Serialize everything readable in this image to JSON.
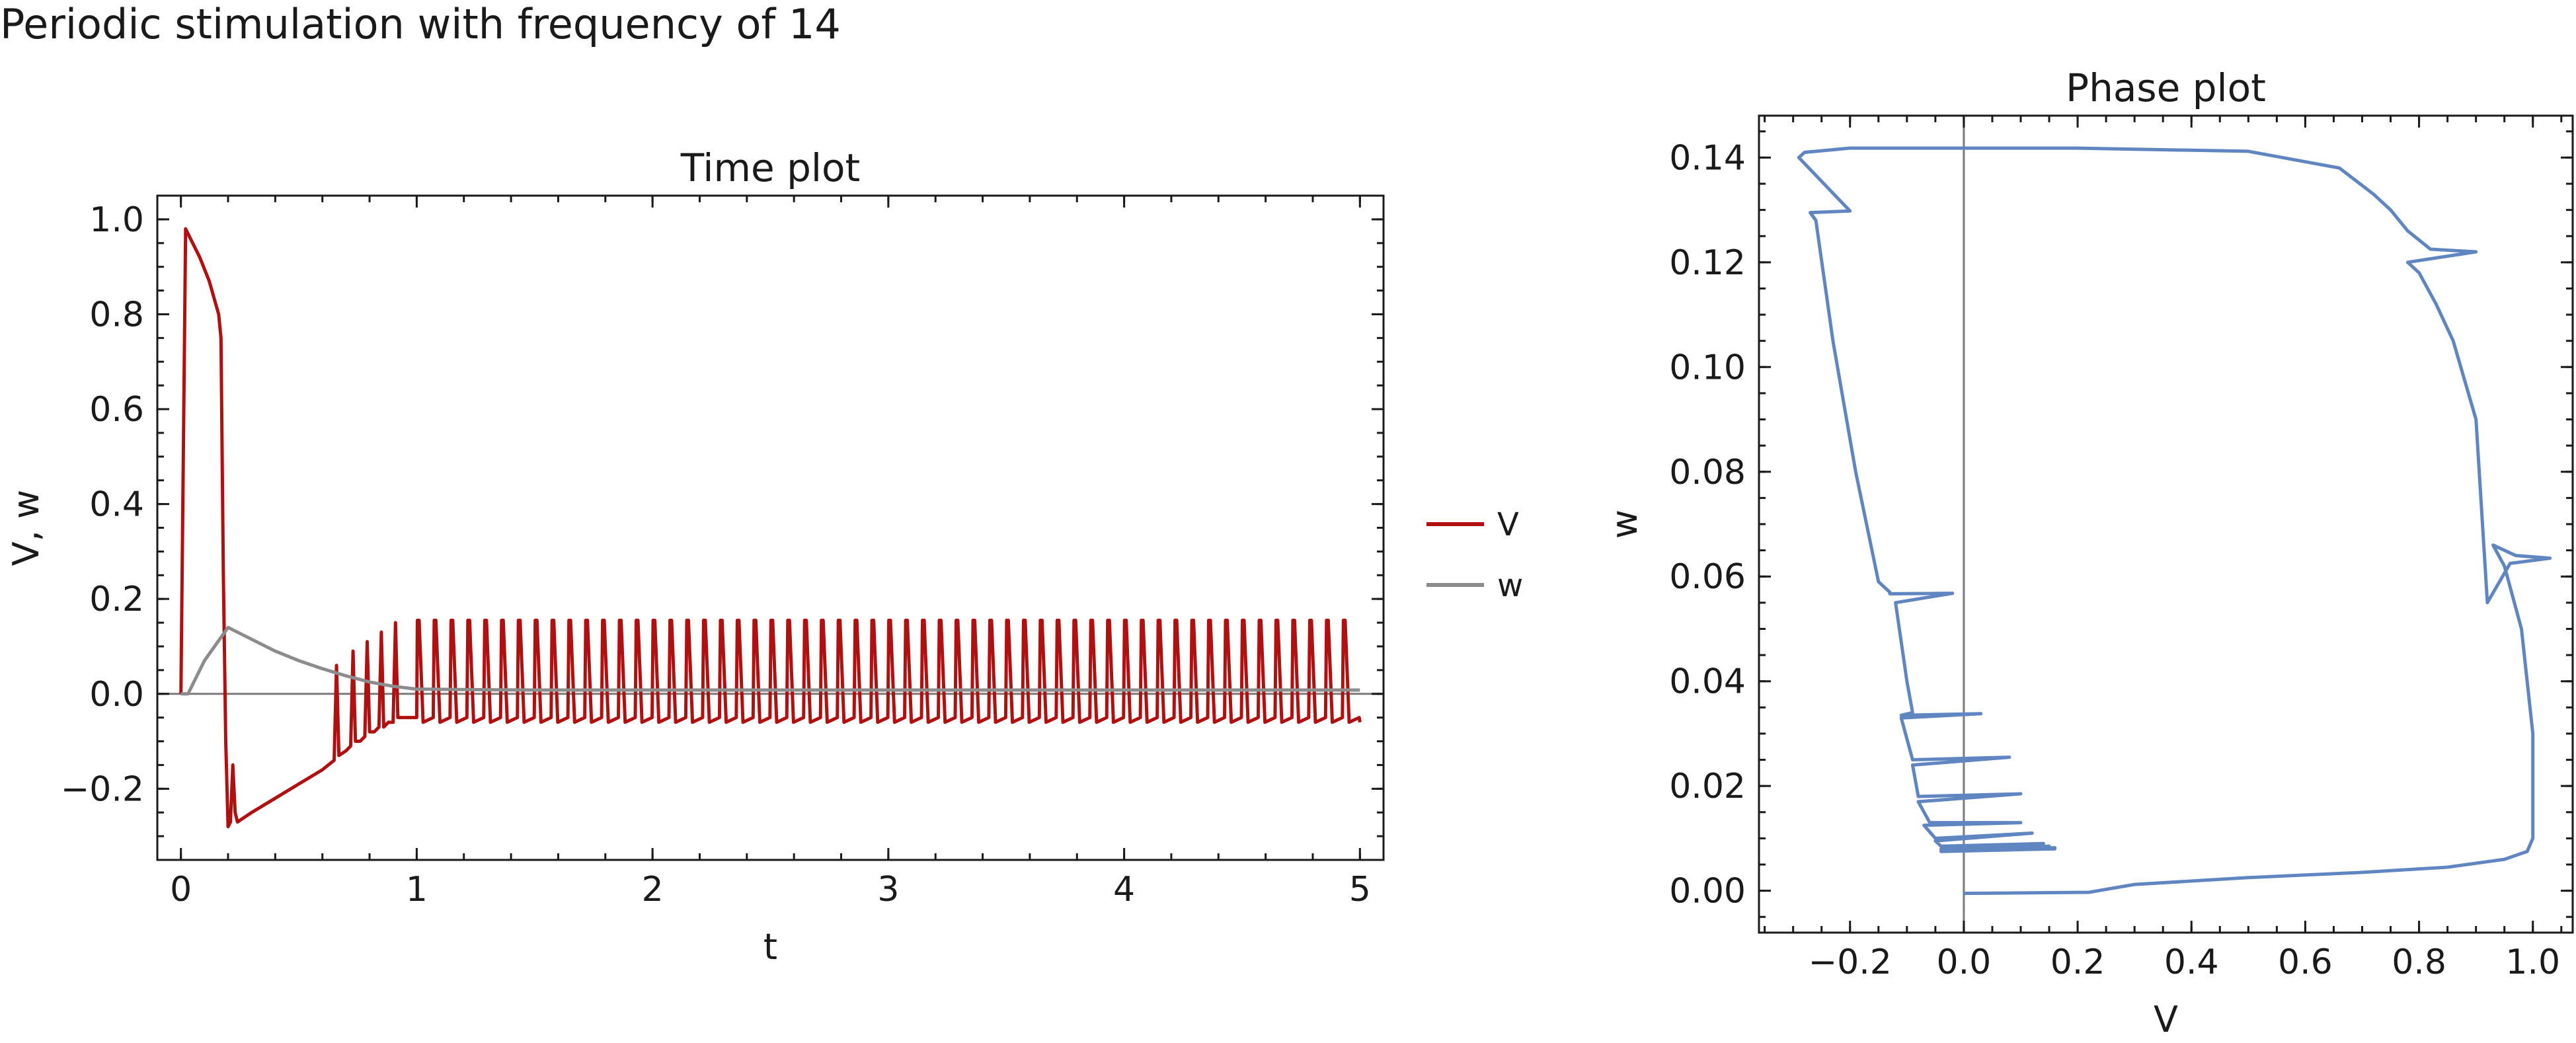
{
  "figure_title": "Periodic stimulation with frequency of 14",
  "chart_data": [
    {
      "type": "line",
      "title": "Time plot",
      "xlabel": "t",
      "ylabel": "V, w",
      "xlim": [
        -0.1,
        5.1
      ],
      "ylim": [
        -0.35,
        1.05
      ],
      "xticks": [
        0,
        1,
        2,
        3,
        4,
        5
      ],
      "xtick_labels": [
        "0",
        "1",
        "2",
        "3",
        "4",
        "5"
      ],
      "yticks": [
        -0.2,
        0,
        0.2,
        0.4,
        0.6,
        0.8,
        1.0
      ],
      "ytick_labels": [
        "−0.2",
        "0.0",
        "0.2",
        "0.4",
        "0.6",
        "0.8",
        "1.0"
      ],
      "zero_line": true,
      "legend_position": "right",
      "series": [
        {
          "name": "V",
          "color": "#b01010",
          "x": [
            0,
            0.02,
            0.04,
            0.08,
            0.12,
            0.16,
            0.17,
            0.18,
            0.19,
            0.2,
            0.21,
            0.22,
            0.23,
            0.24,
            0.3,
            0.4,
            0.5,
            0.6,
            0.65,
            0.66,
            0.67,
            0.7,
            0.72,
            0.73,
            0.74,
            0.76,
            0.78,
            0.79,
            0.8,
            0.82,
            0.84,
            0.85,
            0.86,
            0.88,
            0.9,
            0.91,
            0.92,
            0.95,
            0.97,
            0.99,
            1.0
          ],
          "values": [
            0.0,
            0.98,
            0.96,
            0.92,
            0.87,
            0.8,
            0.75,
            0.25,
            -0.1,
            -0.28,
            -0.27,
            -0.15,
            -0.25,
            -0.27,
            -0.25,
            -0.22,
            -0.19,
            -0.16,
            -0.14,
            0.06,
            -0.13,
            -0.12,
            -0.11,
            0.09,
            -0.1,
            -0.1,
            -0.09,
            0.11,
            -0.08,
            -0.08,
            -0.07,
            0.13,
            -0.07,
            -0.06,
            -0.06,
            0.15,
            -0.05,
            -0.05,
            -0.05,
            -0.05,
            -0.05
          ],
          "periodic": {
            "start": 1.0,
            "end": 5.0,
            "period": 0.0714,
            "max": 0.155,
            "min": -0.06,
            "final_value": -0.06
          }
        },
        {
          "name": "w",
          "color": "#8c8c8c",
          "x": [
            0,
            0.03,
            0.1,
            0.2,
            0.3,
            0.4,
            0.5,
            0.6,
            0.7,
            0.8,
            0.9,
            1.0,
            1.2,
            1.5,
            2,
            3,
            4,
            5
          ],
          "values": [
            0.0,
            0.0,
            0.07,
            0.14,
            0.115,
            0.09,
            0.07,
            0.053,
            0.038,
            0.025,
            0.016,
            0.01,
            0.009,
            0.008,
            0.008,
            0.008,
            0.008,
            0.008
          ]
        }
      ]
    },
    {
      "type": "line",
      "title": "Phase plot",
      "xlabel": "V",
      "ylabel": "w",
      "xlim": [
        -0.36,
        1.07
      ],
      "ylim": [
        -0.008,
        0.148
      ],
      "xticks": [
        -0.2,
        0,
        0.2,
        0.4,
        0.6,
        0.8,
        1.0
      ],
      "xtick_labels": [
        "−0.2",
        "0.0",
        "0.2",
        "0.4",
        "0.6",
        "0.8",
        "1.0"
      ],
      "yticks": [
        0,
        0.02,
        0.04,
        0.06,
        0.08,
        0.1,
        0.12,
        0.14
      ],
      "ytick_labels": [
        "0.00",
        "0.02",
        "0.04",
        "0.06",
        "0.08",
        "0.10",
        "0.12",
        "0.14"
      ],
      "zero_line": true,
      "series": [
        {
          "color": "#5f86c1",
          "x": [
            0,
            0.22,
            0.3,
            0.5,
            0.7,
            0.85,
            0.95,
            0.99,
            1.0,
            1.0,
            0.98,
            0.95,
            0.93,
            0.97,
            1.03,
            0.96,
            0.92,
            0.9,
            0.86,
            0.83,
            0.8,
            0.78,
            0.9,
            0.82,
            0.78,
            0.75,
            0.72,
            0.66,
            0.5,
            0.2,
            -0.2,
            -0.28,
            -0.29,
            -0.2,
            -0.27,
            -0.26,
            -0.23,
            -0.19,
            -0.15,
            -0.13,
            -0.13,
            -0.02,
            -0.12,
            -0.1,
            -0.09,
            -0.11,
            0.03,
            -0.11,
            -0.09,
            0.08,
            -0.09,
            -0.08,
            0.1,
            -0.08,
            -0.06,
            0.1,
            -0.07,
            -0.05,
            0.12,
            -0.05,
            -0.04,
            0.14,
            -0.04,
            -0.03,
            0.15,
            -0.03,
            -0.04,
            0.16,
            -0.04,
            0.16,
            -0.04
          ],
          "values": [
            -0.0005,
            -0.0003,
            0.0012,
            0.0025,
            0.0035,
            0.0045,
            0.006,
            0.0075,
            0.01,
            0.03,
            0.05,
            0.062,
            0.066,
            0.064,
            0.0635,
            0.0625,
            0.055,
            0.09,
            0.105,
            0.112,
            0.118,
            0.12,
            0.122,
            0.1225,
            0.126,
            0.13,
            0.133,
            0.138,
            0.1412,
            0.1418,
            0.1418,
            0.141,
            0.14,
            0.1298,
            0.1295,
            0.128,
            0.105,
            0.08,
            0.059,
            0.057,
            0.0567,
            0.0568,
            0.055,
            0.04,
            0.034,
            0.0335,
            0.0338,
            0.033,
            0.025,
            0.0255,
            0.024,
            0.018,
            0.0185,
            0.017,
            0.013,
            0.013,
            0.0125,
            0.01,
            0.011,
            0.0095,
            0.0085,
            0.009,
            0.008,
            0.0078,
            0.0085,
            0.0077,
            0.0077,
            0.0082,
            0.0075,
            0.008,
            0.0076
          ]
        }
      ]
    }
  ]
}
